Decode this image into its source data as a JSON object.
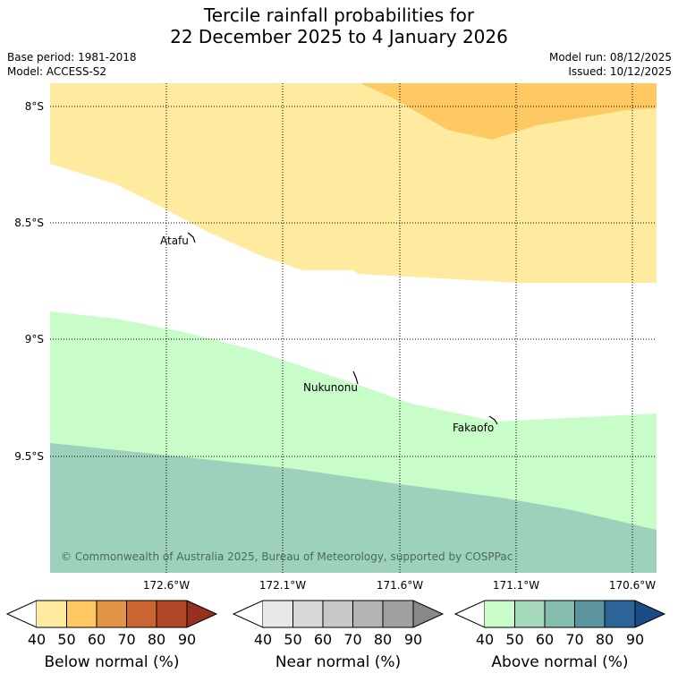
{
  "title": {
    "line1": "Tercile rainfall probabilities for",
    "line2": "22 December 2025 to 4 January 2026"
  },
  "meta": {
    "base_period": "Base period: 1981-2018",
    "model": "Model: ACCESS-S2",
    "model_run": "Model run: 08/12/2025",
    "issued": "Issued: 10/12/2025"
  },
  "map": {
    "lat_labels": [
      "8°S",
      "8.5°S",
      "9°S",
      "9.5°S"
    ],
    "lon_labels": [
      "172.6°W",
      "172.1°W",
      "171.6°W",
      "171.1°W",
      "170.6°W"
    ],
    "places": [
      {
        "name": "Atafu"
      },
      {
        "name": "Nukunonu"
      },
      {
        "name": "Fakaofo"
      }
    ],
    "copyright": "© Commonwealth of Australia 2025, Bureau of Meteorology, supported by COSPPac",
    "colors": {
      "below_40_50": "#feeb9f",
      "below_50_60": "#fec962",
      "above_40_50": "#c8fcc8",
      "above_50_60": "#9ed1bb"
    }
  },
  "colorbars": [
    {
      "title": "Below normal (%)",
      "ticks": [
        "40",
        "50",
        "60",
        "70",
        "80",
        "90"
      ],
      "colors": [
        "#feeb9f",
        "#fec962",
        "#e09444",
        "#cc6333",
        "#b04828",
        "#983020"
      ]
    },
    {
      "title": "Near normal (%)",
      "ticks": [
        "40",
        "50",
        "60",
        "70",
        "80",
        "90"
      ],
      "colors": [
        "#e8e8e8",
        "#d8d8d8",
        "#c8c8c8",
        "#b4b4b4",
        "#a0a0a0",
        "#888888"
      ]
    },
    {
      "title": "Above normal (%)",
      "ticks": [
        "40",
        "50",
        "60",
        "70",
        "80",
        "90"
      ],
      "colors": [
        "#c8fcc8",
        "#a6d9bb",
        "#84bcae",
        "#5a95a0",
        "#2d6497",
        "#1a4c88"
      ]
    }
  ]
}
